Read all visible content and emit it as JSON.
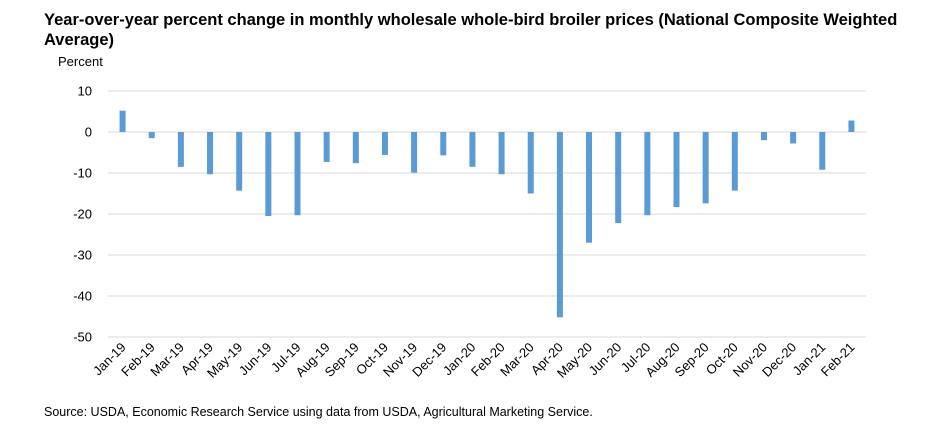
{
  "chart_data": {
    "type": "bar",
    "title": "Year-over-year percent change in monthly wholesale whole-bird broiler prices (National Composite Weighted Average)",
    "ylabel": "Percent",
    "xlabel": "",
    "ylim": [
      -50,
      10
    ],
    "yticks": [
      10,
      0,
      -10,
      -20,
      -30,
      -40,
      -50
    ],
    "grid": true,
    "bar_color": "#5B9BD5",
    "grid_color": "#d9d9d9",
    "categories": [
      "Jan-19",
      "Feb-19",
      "Mar-19",
      "Apr-19",
      "May-19",
      "Jun-19",
      "Jul-19",
      "Aug-19",
      "Sep-19",
      "Oct-19",
      "Nov-19",
      "Dec-19",
      "Jan-20",
      "Feb-20",
      "Mar-20",
      "Apr-20",
      "May-20",
      "Jun-20",
      "Jul-20",
      "Aug-20",
      "Sep-20",
      "Oct-20",
      "Nov-20",
      "Dec-20",
      "Jan-21",
      "Feb-21"
    ],
    "values": [
      5.2,
      -1.5,
      -8.5,
      -10.3,
      -14.3,
      -20.5,
      -20.3,
      -7.3,
      -7.6,
      -5.6,
      -9.9,
      -5.7,
      -8.5,
      -10.3,
      -15.0,
      -45.2,
      -27.0,
      -22.2,
      -20.3,
      -18.3,
      -17.4,
      -14.3,
      -2.0,
      -2.8,
      -9.2,
      2.8
    ],
    "aprill_note": "",
    "source": "Source: USDA, Economic Research Service using data from USDA, Agricultural Marketing Service."
  }
}
